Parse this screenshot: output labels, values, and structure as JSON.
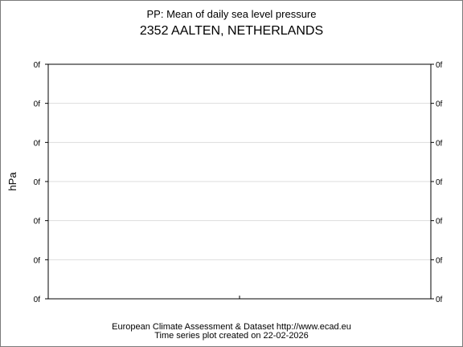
{
  "chart_data": {
    "type": "line",
    "title": "PP: Mean of daily sea level pressure",
    "subtitle": "2352 AALTEN, NETHERLANDS",
    "ylabel": "hPa",
    "xlabel": "",
    "y_tick_labels": [
      "0f",
      "0f",
      "0f",
      "0f",
      "0f",
      "0f",
      "0f"
    ],
    "x_ticks": [
      0.5
    ],
    "grid": true,
    "series": [],
    "colors": {
      "grid": "#dddddd",
      "axis": "#000000"
    }
  },
  "footer": {
    "line1": "European Climate Assessment & Dataset  http://www.ecad.eu",
    "line2": "Time series plot created on 22-02-2026"
  }
}
